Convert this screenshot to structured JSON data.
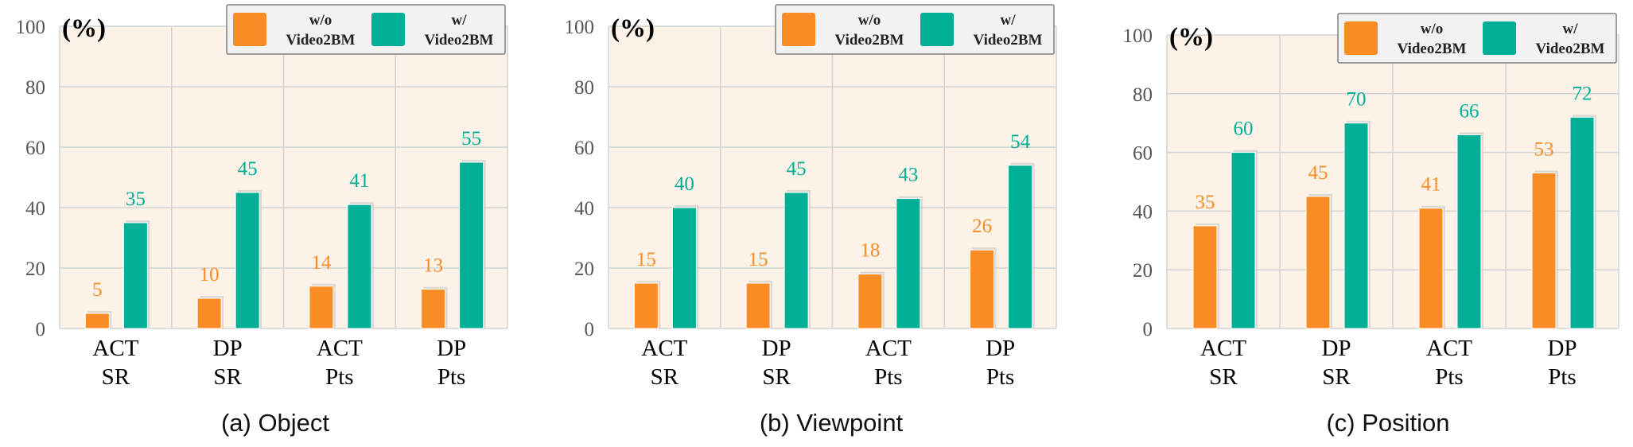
{
  "colors": {
    "without": "#F98C24",
    "with": "#00AF95",
    "plot_bg": "#FDF2E7",
    "grid": "#D4D4D4"
  },
  "legend": {
    "without": [
      "w/o",
      "Video2BM"
    ],
    "with": [
      "w/",
      "Video2BM"
    ]
  },
  "chart_data": [
    {
      "type": "bar",
      "caption": "(a) Object",
      "unit_label": "(%)",
      "categories": [
        [
          "ACT",
          "SR"
        ],
        [
          "DP",
          "SR"
        ],
        [
          "ACT",
          "Pts"
        ],
        [
          "DP",
          "Pts"
        ]
      ],
      "series": [
        {
          "name": "w/o Video2BM",
          "values": [
            5,
            10,
            14,
            13
          ]
        },
        {
          "name": "w/ Video2BM",
          "values": [
            35,
            45,
            41,
            55
          ]
        }
      ],
      "ylim": [
        0,
        100
      ],
      "yticks": [
        0,
        20,
        40,
        60,
        80,
        100
      ],
      "grid": true,
      "legend_position": "top-right"
    },
    {
      "type": "bar",
      "caption": "(b) Viewpoint",
      "unit_label": "(%)",
      "categories": [
        [
          "ACT",
          "SR"
        ],
        [
          "DP",
          "SR"
        ],
        [
          "ACT",
          "Pts"
        ],
        [
          "DP",
          "Pts"
        ]
      ],
      "series": [
        {
          "name": "w/o Video2BM",
          "values": [
            15,
            15,
            18,
            26
          ]
        },
        {
          "name": "w/ Video2BM",
          "values": [
            40,
            45,
            43,
            54
          ]
        }
      ],
      "ylim": [
        0,
        100
      ],
      "yticks": [
        0,
        20,
        40,
        60,
        80,
        100
      ],
      "grid": true,
      "legend_position": "top-right"
    },
    {
      "type": "bar",
      "caption": "(c) Position",
      "unit_label": "(%)",
      "categories": [
        [
          "ACT",
          "SR"
        ],
        [
          "DP",
          "SR"
        ],
        [
          "ACT",
          "Pts"
        ],
        [
          "DP",
          "Pts"
        ]
      ],
      "series": [
        {
          "name": "w/o Video2BM",
          "values": [
            35,
            45,
            41,
            53
          ]
        },
        {
          "name": "w/ Video2BM",
          "values": [
            60,
            70,
            66,
            72
          ]
        }
      ],
      "ylim": [
        0,
        100
      ],
      "yticks": [
        0,
        20,
        40,
        60,
        80,
        100
      ],
      "grid": true,
      "legend_position": "top-right"
    }
  ]
}
